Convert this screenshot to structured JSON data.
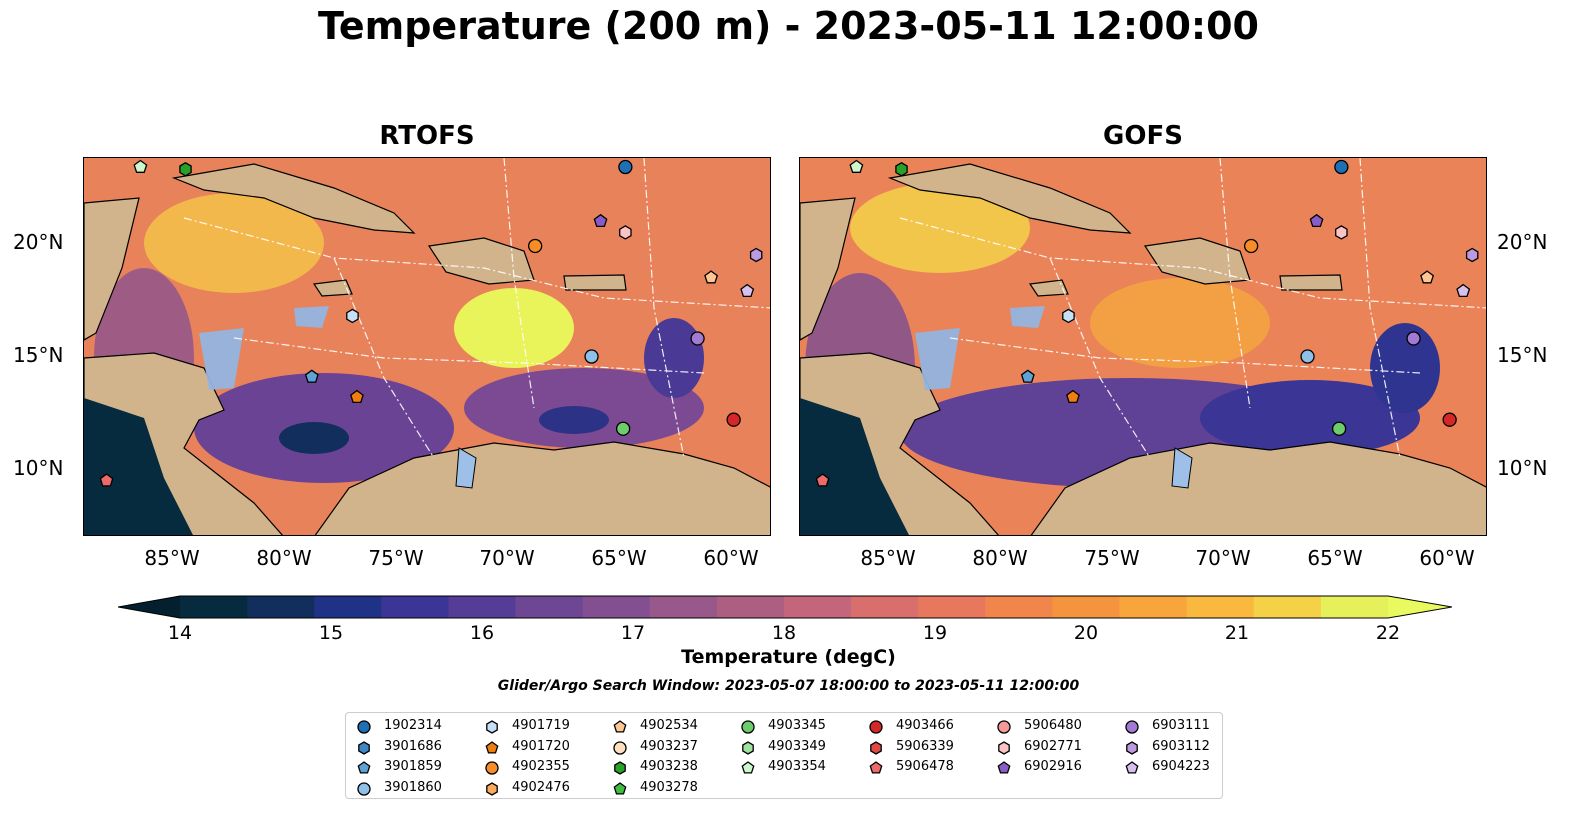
{
  "title": "Temperature (200 m) - 2023-05-11 12:00:00",
  "panels": [
    {
      "title": "RTOFS"
    },
    {
      "title": "GOFS"
    }
  ],
  "lat_labels": [
    "20°N",
    "15°N",
    "10°N"
  ],
  "lon_labels": [
    "85°W",
    "80°W",
    "75°W",
    "70°W",
    "65°W",
    "60°W"
  ],
  "colorbar": {
    "label": "Temperature (degC)",
    "ticks": [
      "14",
      "15",
      "16",
      "17",
      "18",
      "19",
      "20",
      "21",
      "22"
    ],
    "colors": [
      "#062b3e",
      "#122e5c",
      "#1f3286",
      "#3b3595",
      "#553d97",
      "#6d4794",
      "#834f90",
      "#98588a",
      "#ad5f82",
      "#c4667b",
      "#d86f6d",
      "#e7785d",
      "#f1854c",
      "#f5943e",
      "#f8a53b",
      "#f9b93f",
      "#f4d146",
      "#e6f05a"
    ],
    "extend_low_color": "#04202e",
    "extend_high_color": "#e8fa5f"
  },
  "search_window": "Glider/Argo Search Window: 2023-05-07 18:00:00 to 2023-05-11 12:00:00",
  "legend": [
    {
      "id": "1902314",
      "marker": "circle",
      "color": "#1f6fb4"
    },
    {
      "id": "3901686",
      "marker": "hexagon",
      "color": "#3f86c4"
    },
    {
      "id": "3901859",
      "marker": "pentagon",
      "color": "#5fa2d6"
    },
    {
      "id": "3901860",
      "marker": "circle",
      "color": "#8fc0e8"
    },
    {
      "id": "4901719",
      "marker": "hexagon",
      "color": "#c6e0f5"
    },
    {
      "id": "4901720",
      "marker": "pentagon",
      "color": "#f07d10"
    },
    {
      "id": "4902355",
      "marker": "circle",
      "color": "#f78d26"
    },
    {
      "id": "4902476",
      "marker": "hexagon",
      "color": "#fbab5e"
    },
    {
      "id": "4902534",
      "marker": "pentagon",
      "color": "#fdc693"
    },
    {
      "id": "4903237",
      "marker": "circle",
      "color": "#fde0c2"
    },
    {
      "id": "4903238",
      "marker": "hexagon",
      "color": "#27a127"
    },
    {
      "id": "4903278",
      "marker": "pentagon",
      "color": "#3fbf3f"
    },
    {
      "id": "4903345",
      "marker": "circle",
      "color": "#6dcd6d"
    },
    {
      "id": "4903349",
      "marker": "hexagon",
      "color": "#9fe39f"
    },
    {
      "id": "4903354",
      "marker": "pentagon",
      "color": "#cdf7cd"
    },
    {
      "id": "4903466",
      "marker": "circle",
      "color": "#d62728"
    },
    {
      "id": "5906339",
      "marker": "hexagon",
      "color": "#e04848"
    },
    {
      "id": "5906478",
      "marker": "pentagon",
      "color": "#ec6a6a"
    },
    {
      "id": "5906480",
      "marker": "circle",
      "color": "#f49a9a"
    },
    {
      "id": "6902771",
      "marker": "hexagon",
      "color": "#f9c4c4"
    },
    {
      "id": "6902916",
      "marker": "pentagon",
      "color": "#8a5cc8"
    },
    {
      "id": "6903111",
      "marker": "circle",
      "color": "#a27ad4"
    },
    {
      "id": "6903112",
      "marker": "hexagon",
      "color": "#bb9ae0"
    },
    {
      "id": "6904223",
      "marker": "pentagon",
      "color": "#d6c0ee"
    }
  ],
  "map_extent": {
    "lon_min": -89,
    "lon_max": -58.5,
    "lat_min": 7,
    "lat_max": 23.8
  },
  "platforms": [
    {
      "id": "1902314",
      "lon": -65.0,
      "lat": 23.4
    },
    {
      "id": "4903238",
      "lon": -84.5,
      "lat": 23.3
    },
    {
      "id": "4903354",
      "lon": -86.5,
      "lat": 23.4
    },
    {
      "id": "6902916",
      "lon": -66.1,
      "lat": 21.0
    },
    {
      "id": "6902771",
      "lon": -65.0,
      "lat": 20.5
    },
    {
      "id": "4902355",
      "lon": -69.0,
      "lat": 19.9
    },
    {
      "id": "6903112",
      "lon": -59.2,
      "lat": 19.5
    },
    {
      "id": "4902534",
      "lon": -61.2,
      "lat": 18.5
    },
    {
      "id": "6904223",
      "lon": -59.6,
      "lat": 17.9
    },
    {
      "id": "4901719",
      "lon": -77.1,
      "lat": 16.8
    },
    {
      "id": "6903111",
      "lon": -61.8,
      "lat": 15.8
    },
    {
      "id": "3901860",
      "lon": -66.5,
      "lat": 15.0
    },
    {
      "id": "3901859",
      "lon": -78.9,
      "lat": 14.1
    },
    {
      "id": "4901720",
      "lon": -76.9,
      "lat": 13.2
    },
    {
      "id": "4903466",
      "lon": -60.2,
      "lat": 12.2
    },
    {
      "id": "4903345",
      "lon": -65.1,
      "lat": 11.8
    },
    {
      "id": "5906478",
      "lon": -88.0,
      "lat": 9.5
    }
  ]
}
